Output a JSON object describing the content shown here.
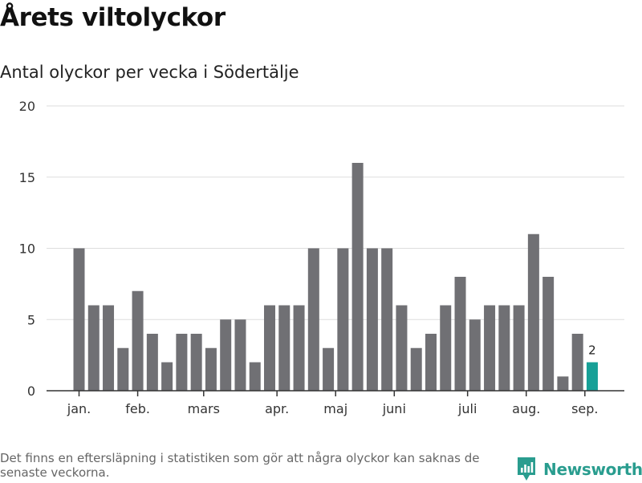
{
  "chart_data": {
    "type": "bar",
    "title": "Årets viltolyckor",
    "subtitle": "Antal olyckor per vecka i Södertälje",
    "values": [
      10,
      6,
      6,
      3,
      7,
      4,
      2,
      4,
      4,
      3,
      5,
      5,
      2,
      6,
      6,
      6,
      10,
      3,
      10,
      16,
      10,
      10,
      6,
      3,
      4,
      6,
      8,
      5,
      6,
      6,
      6,
      11,
      8,
      1,
      4,
      2
    ],
    "month_labels": [
      {
        "label": "jan.",
        "bar": 0
      },
      {
        "label": "feb.",
        "bar": 4
      },
      {
        "label": "mars",
        "bar": 8.5
      },
      {
        "label": "apr.",
        "bar": 13.5
      },
      {
        "label": "maj",
        "bar": 17.5
      },
      {
        "label": "juni",
        "bar": 21.5
      },
      {
        "label": "juli",
        "bar": 26.5
      },
      {
        "label": "aug.",
        "bar": 30.5
      },
      {
        "label": "sep.",
        "bar": 34.5
      }
    ],
    "y_ticks": [
      0,
      5,
      10,
      15,
      20
    ],
    "ylim": [
      0,
      20
    ],
    "grid": true,
    "highlight": {
      "bar": 35,
      "label": "2"
    },
    "colors": {
      "bar": "#707074",
      "highlight": "#17a097",
      "grid": "#dddddd",
      "axis": "#333333"
    }
  },
  "footnote": "Det finns en eftersläpning i statistiken som gör att några olyckor kan saknas de senaste veckorna.",
  "brand": {
    "name": "Newsworthy",
    "icon": "newsworthy-logo-icon",
    "color": "#2a9d8f"
  }
}
